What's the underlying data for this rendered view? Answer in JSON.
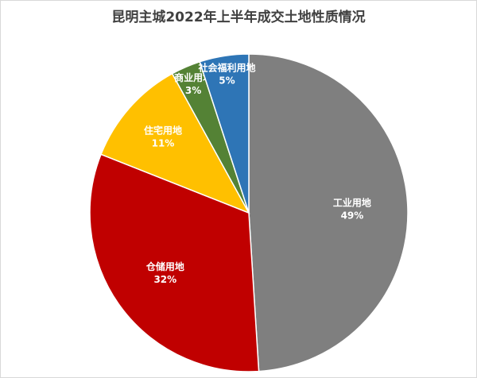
{
  "chart_data": {
    "type": "pie",
    "title": "昆明主城2022年上半年成交土地性质情况",
    "categories": [
      "工业用地",
      "仓储用地",
      "住宅用地",
      "商业用地",
      "社会福利用地"
    ],
    "values": [
      49,
      32,
      11,
      3,
      5
    ],
    "value_labels": [
      "49%",
      "32%",
      "11%",
      "3%",
      "5%"
    ],
    "colors": [
      "#7f7f7f",
      "#c00000",
      "#ffc000",
      "#548235",
      "#2e75b6"
    ]
  }
}
